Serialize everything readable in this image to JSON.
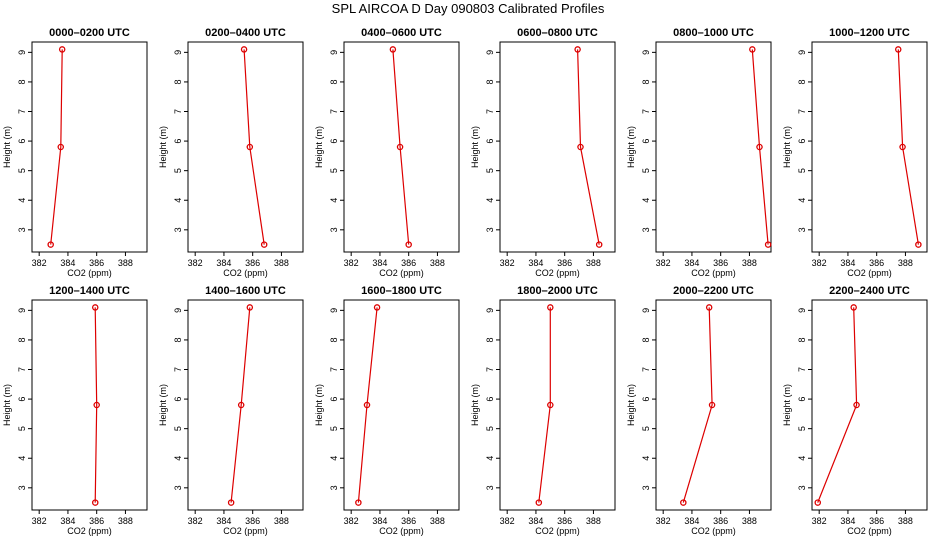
{
  "title": "SPL AIRCOA D  Day 090803  Calibrated Profiles",
  "colors": {
    "line": "#dd0000",
    "axis": "#000000",
    "background": "#ffffff"
  },
  "chart_data": {
    "type": "line",
    "xlabel": "CO2 (ppm)",
    "ylabel": "Height (m)",
    "xlim": [
      381.5,
      389.5
    ],
    "ylim": [
      2.25,
      9.35
    ],
    "x_ticks": [
      "382",
      "384",
      "386",
      "388"
    ],
    "y_ticks": [
      "3",
      "4",
      "5",
      "6",
      "7",
      "8",
      "9"
    ],
    "heights": [
      9.1,
      5.8,
      2.5
    ],
    "panels": [
      {
        "title": "0000–0200 UTC",
        "co2": [
          383.6,
          383.5,
          382.8
        ]
      },
      {
        "title": "0200–0400 UTC",
        "co2": [
          385.4,
          385.8,
          386.8
        ]
      },
      {
        "title": "0400–0600 UTC",
        "co2": [
          384.9,
          385.4,
          386.0
        ]
      },
      {
        "title": "0600–0800 UTC",
        "co2": [
          386.9,
          387.1,
          388.4
        ]
      },
      {
        "title": "0800–1000 UTC",
        "co2": [
          388.2,
          388.7,
          389.3
        ]
      },
      {
        "title": "1000–1200 UTC",
        "co2": [
          387.5,
          387.8,
          388.9
        ]
      },
      {
        "title": "1200–1400 UTC",
        "co2": [
          385.9,
          386.0,
          385.9
        ]
      },
      {
        "title": "1400–1600 UTC",
        "co2": [
          385.8,
          385.2,
          384.5
        ]
      },
      {
        "title": "1600–1800 UTC",
        "co2": [
          383.8,
          383.1,
          382.5
        ]
      },
      {
        "title": "1800–2000 UTC",
        "co2": [
          385.0,
          385.0,
          384.2
        ]
      },
      {
        "title": "2000–2200 UTC",
        "co2": [
          385.2,
          385.4,
          383.4
        ]
      },
      {
        "title": "2200–2400 UTC",
        "co2": [
          384.4,
          384.6,
          381.9
        ]
      }
    ]
  }
}
